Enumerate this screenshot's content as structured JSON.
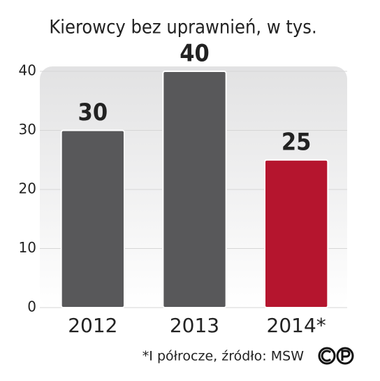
{
  "chart_data": {
    "type": "bar",
    "title": "Kierowcy bez uprawnień, w tys.",
    "categories": [
      "2012",
      "2013",
      "2014*"
    ],
    "values": [
      30,
      40,
      25
    ],
    "colors": [
      "#58585a",
      "#58585a",
      "#b5152e"
    ],
    "ylim": [
      0,
      40
    ],
    "yticks": [
      0,
      10,
      20,
      30,
      40
    ],
    "grid": true,
    "note": "*I półrocze, źródło: MSW"
  }
}
